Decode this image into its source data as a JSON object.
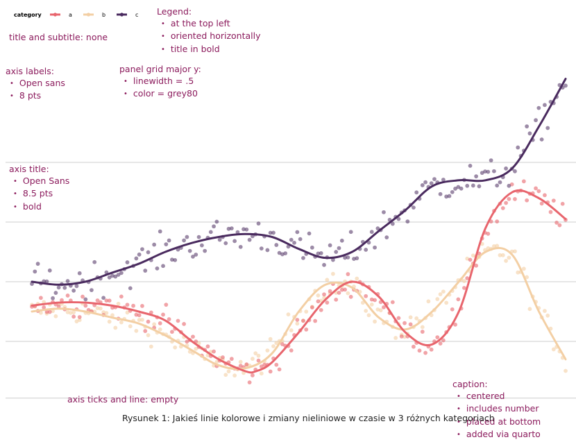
{
  "chart_data": {
    "type": "line",
    "title": "",
    "xlabel": "",
    "ylabel": "",
    "grid": "major-y",
    "legend": {
      "title": "category",
      "position": "top-left",
      "orientation": "horizontal",
      "entries": [
        "a",
        "b",
        "c"
      ]
    },
    "x_range": [
      0,
      100
    ],
    "y_range": [
      0,
      100
    ],
    "gridlines_y": [
      1,
      20,
      40,
      60,
      80
    ],
    "colors": {
      "a": "#e8656d",
      "b": "#f3cfa4",
      "c": "#4a2b5f"
    },
    "series": [
      {
        "name": "a",
        "x": [
          0,
          5,
          10,
          15,
          20,
          25,
          30,
          35,
          40,
          42,
          45,
          50,
          55,
          60,
          65,
          70,
          75,
          80,
          85,
          90,
          95,
          100
        ],
        "y": [
          32,
          33,
          33,
          32,
          30,
          27,
          20,
          14,
          10,
          10,
          13,
          23,
          34,
          40,
          35,
          23,
          19,
          30,
          58,
          70,
          68,
          61
        ]
      },
      {
        "name": "b",
        "x": [
          0,
          5,
          10,
          15,
          20,
          25,
          30,
          35,
          40,
          45,
          50,
          55,
          60,
          65,
          70,
          75,
          80,
          85,
          90,
          95,
          100
        ],
        "y": [
          30,
          31,
          30,
          28,
          26,
          22,
          17,
          12,
          11,
          16,
          30,
          39,
          38,
          28,
          24,
          30,
          40,
          50,
          49,
          30,
          14
        ]
      },
      {
        "name": "c",
        "x": [
          0,
          5,
          10,
          15,
          20,
          25,
          30,
          35,
          40,
          45,
          50,
          55,
          60,
          65,
          70,
          75,
          80,
          85,
          90,
          95,
          100
        ],
        "y": [
          40,
          39,
          40,
          43,
          46,
          50,
          53,
          55,
          56,
          55,
          51,
          48,
          50,
          57,
          64,
          72,
          74,
          74,
          78,
          92,
          108
        ]
      }
    ]
  },
  "annotations": {
    "legend_note": {
      "heading": "Legend:",
      "items": [
        "at the top left",
        "oriented horizontally",
        "title in bold"
      ]
    },
    "title_note": "title and subtitle: none",
    "axis_labels_note": {
      "heading": "axis labels:",
      "items": [
        "Open sans",
        "8 pts"
      ]
    },
    "grid_note": {
      "heading": "panel grid major y:",
      "items": [
        "linewidth = .5",
        "color = grey80"
      ]
    },
    "axis_title_note": {
      "heading": "axis title:",
      "items": [
        "Open Sans",
        "8.5 pts",
        "bold"
      ]
    },
    "ticks_note": "axis ticks and line: empty",
    "caption_note": {
      "heading": "caption:",
      "items": [
        "centered",
        "includes  number",
        "placed at bottom",
        "added via quarto"
      ]
    }
  },
  "caption": "Rysunek 1: Jakieś linie kolorowe i zmiany nieliniowe w czasie w  3 różnych kategoriach"
}
